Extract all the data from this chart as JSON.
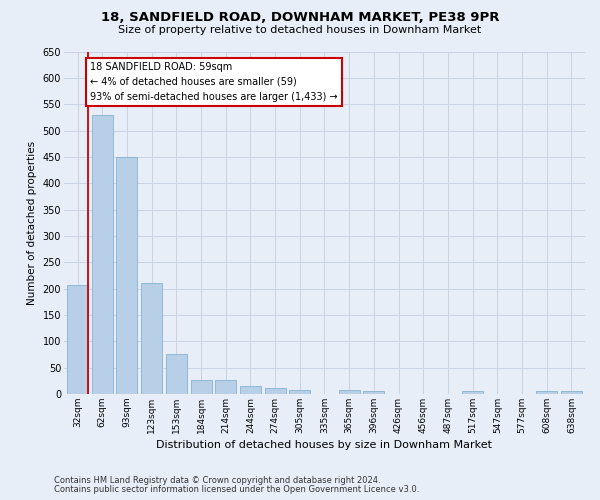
{
  "title": "18, SANDFIELD ROAD, DOWNHAM MARKET, PE38 9PR",
  "subtitle": "Size of property relative to detached houses in Downham Market",
  "xlabel": "Distribution of detached houses by size in Downham Market",
  "ylabel": "Number of detached properties",
  "footnote1": "Contains HM Land Registry data © Crown copyright and database right 2024.",
  "footnote2": "Contains public sector information licensed under the Open Government Licence v3.0.",
  "categories": [
    "32sqm",
    "62sqm",
    "93sqm",
    "123sqm",
    "153sqm",
    "184sqm",
    "214sqm",
    "244sqm",
    "274sqm",
    "305sqm",
    "335sqm",
    "365sqm",
    "396sqm",
    "426sqm",
    "456sqm",
    "487sqm",
    "517sqm",
    "547sqm",
    "577sqm",
    "608sqm",
    "638sqm"
  ],
  "values": [
    207,
    530,
    450,
    210,
    75,
    27,
    27,
    15,
    12,
    8,
    0,
    8,
    5,
    0,
    0,
    0,
    5,
    0,
    0,
    5,
    5
  ],
  "bar_color": "#b8cfe8",
  "bar_edge_color": "#7aaacf",
  "grid_color": "#c8d4e4",
  "background_color": "#e8eef8",
  "annotation_line1": "18 SANDFIELD ROAD: 59sqm",
  "annotation_line2": "← 4% of detached houses are smaller (59)",
  "annotation_line3": "93% of semi-detached houses are larger (1,433) →",
  "annotation_box_facecolor": "#ffffff",
  "annotation_box_edgecolor": "#cc0000",
  "vline_color": "#cc0000",
  "ylim_max": 650,
  "yticks": [
    0,
    50,
    100,
    150,
    200,
    250,
    300,
    350,
    400,
    450,
    500,
    550,
    600,
    650
  ]
}
